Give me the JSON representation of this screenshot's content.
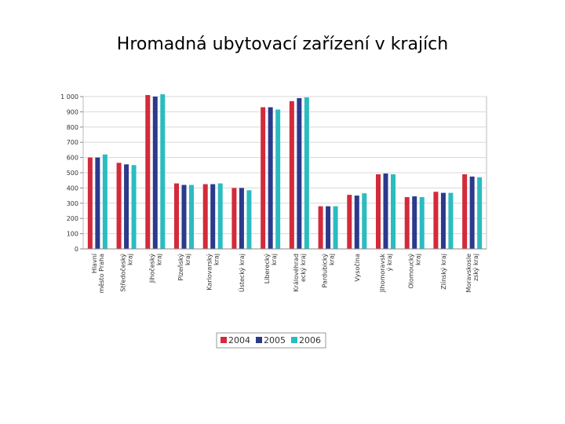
{
  "slide": {
    "title": "Hromadná ubytovací zařízení v krajích"
  },
  "chart_data": {
    "type": "bar",
    "title": "Hromadná ubytovací zařízení v krajích",
    "xlabel": "",
    "ylabel": "",
    "ylim": [
      0,
      1000
    ],
    "yticks": [
      0,
      100,
      200,
      300,
      400,
      500,
      600,
      700,
      800,
      900,
      1000
    ],
    "ytick_labels": [
      "0",
      "100",
      "200",
      "300",
      "400",
      "500",
      "600",
      "700",
      "800",
      "900",
      "1 000"
    ],
    "grid": true,
    "legend_position": "bottom",
    "categories": [
      [
        "Hlavní",
        "město Praha"
      ],
      [
        "Středočeský",
        "kraj"
      ],
      [
        "Jihočeský",
        "kraj"
      ],
      [
        "Plzeňský",
        "kraj"
      ],
      [
        "Karlovarský",
        "kraj"
      ],
      [
        "Ústecký kraj"
      ],
      [
        "Liberecký",
        "kraj"
      ],
      [
        "Královéhrad",
        "ecký kraj"
      ],
      [
        "Pardubický",
        "kraj"
      ],
      [
        "Vysočina"
      ],
      [
        "Jihomoravsk",
        "ý kraj"
      ],
      [
        "Olomoucký",
        "kraj"
      ],
      [
        "Zlínský kraj"
      ],
      [
        "Moravskosle",
        "zský kraj"
      ]
    ],
    "series": [
      {
        "name": "2004",
        "color": "#d42a3a",
        "values": [
          600,
          565,
          1010,
          430,
          425,
          400,
          930,
          970,
          280,
          355,
          490,
          340,
          375,
          490
        ]
      },
      {
        "name": "2005",
        "color": "#2b3a8c",
        "values": [
          600,
          555,
          1000,
          420,
          425,
          400,
          930,
          990,
          280,
          350,
          495,
          345,
          368,
          475
        ]
      },
      {
        "name": "2006",
        "color": "#2bbcc0",
        "values": [
          620,
          550,
          1015,
          420,
          430,
          385,
          915,
          995,
          280,
          365,
          490,
          340,
          368,
          470
        ]
      }
    ]
  }
}
